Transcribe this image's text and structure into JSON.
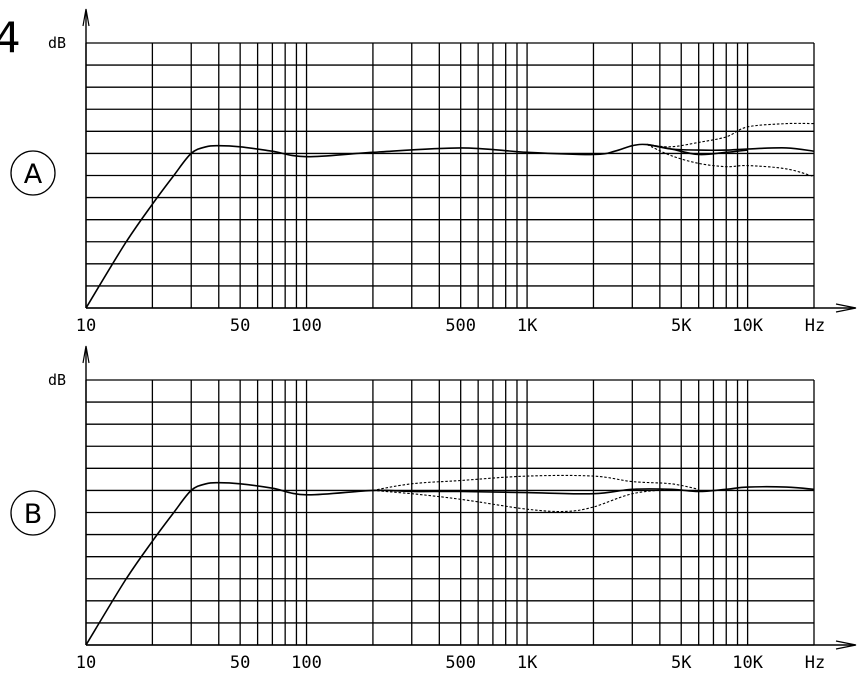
{
  "figure_number": "4",
  "chart_data": [
    {
      "type": "line",
      "panel_label": "A",
      "ylabel": "dB",
      "xunit": "Hz",
      "xscale": "log",
      "xlim": [
        10,
        20000
      ],
      "x_tick_labels": [
        {
          "x": 10,
          "label": "10"
        },
        {
          "x": 50,
          "label": "50"
        },
        {
          "x": 100,
          "label": "100"
        },
        {
          "x": 500,
          "label": "500"
        },
        {
          "x": 1000,
          "label": "1K"
        },
        {
          "x": 5000,
          "label": "5K"
        },
        {
          "x": 10000,
          "label": "10K"
        }
      ],
      "ylim": [
        0,
        12
      ],
      "grid": true,
      "series": [
        {
          "style": "solid",
          "points": [
            [
              10,
              0
            ],
            [
              15,
              2.9
            ],
            [
              20,
              4.7
            ],
            [
              25,
              6.0
            ],
            [
              30,
              7.0
            ],
            [
              35,
              7.3
            ],
            [
              40,
              7.35
            ],
            [
              50,
              7.3
            ],
            [
              70,
              7.1
            ],
            [
              100,
              6.85
            ],
            [
              200,
              7.05
            ],
            [
              500,
              7.25
            ],
            [
              1000,
              7.05
            ],
            [
              2000,
              6.95
            ],
            [
              2500,
              7.1
            ],
            [
              3000,
              7.35
            ],
            [
              3500,
              7.4
            ],
            [
              4500,
              7.2
            ],
            [
              6000,
              7.15
            ],
            [
              8000,
              7.15
            ],
            [
              10000,
              7.2
            ],
            [
              15000,
              7.25
            ],
            [
              20000,
              7.1
            ]
          ]
        },
        {
          "style": "dashed",
          "points": [
            [
              3500,
              7.4
            ],
            [
              4500,
              7.3
            ],
            [
              6000,
              7.5
            ],
            [
              8000,
              7.75
            ],
            [
              10000,
              8.2
            ],
            [
              15000,
              8.35
            ],
            [
              20000,
              8.35
            ]
          ]
        },
        {
          "style": "solid",
          "points": [
            [
              3500,
              7.4
            ],
            [
              4500,
              7.2
            ],
            [
              6000,
              6.95
            ],
            [
              8000,
              7.05
            ],
            [
              10000,
              7.15
            ]
          ]
        },
        {
          "style": "dashed",
          "points": [
            [
              3500,
              7.4
            ],
            [
              4500,
              6.9
            ],
            [
              6000,
              6.55
            ],
            [
              8000,
              6.4
            ],
            [
              10000,
              6.45
            ],
            [
              15000,
              6.3
            ],
            [
              20000,
              5.95
            ]
          ]
        }
      ]
    },
    {
      "type": "line",
      "panel_label": "B",
      "ylabel": "dB",
      "xunit": "Hz",
      "xscale": "log",
      "xlim": [
        10,
        20000
      ],
      "x_tick_labels": [
        {
          "x": 10,
          "label": "10"
        },
        {
          "x": 50,
          "label": "50"
        },
        {
          "x": 100,
          "label": "100"
        },
        {
          "x": 500,
          "label": "500"
        },
        {
          "x": 1000,
          "label": "1K"
        },
        {
          "x": 5000,
          "label": "5K"
        },
        {
          "x": 10000,
          "label": "10K"
        }
      ],
      "ylim": [
        0,
        12
      ],
      "grid": true,
      "series": [
        {
          "style": "solid",
          "points": [
            [
              10,
              0
            ],
            [
              15,
              2.9
            ],
            [
              20,
              4.7
            ],
            [
              25,
              6.0
            ],
            [
              30,
              7.0
            ],
            [
              35,
              7.3
            ],
            [
              40,
              7.35
            ],
            [
              50,
              7.3
            ],
            [
              70,
              7.1
            ],
            [
              100,
              6.8
            ],
            [
              200,
              7.0
            ],
            [
              300,
              6.95
            ],
            [
              500,
              6.95
            ],
            [
              1000,
              6.9
            ],
            [
              2000,
              6.85
            ],
            [
              3000,
              7.05
            ],
            [
              4500,
              7.05
            ],
            [
              6000,
              6.95
            ],
            [
              8000,
              7.05
            ],
            [
              10000,
              7.15
            ],
            [
              15000,
              7.15
            ],
            [
              20000,
              7.05
            ]
          ]
        },
        {
          "style": "dashed",
          "points": [
            [
              200,
              7.0
            ],
            [
              300,
              7.3
            ],
            [
              500,
              7.45
            ],
            [
              1000,
              7.65
            ],
            [
              2000,
              7.65
            ],
            [
              3000,
              7.4
            ],
            [
              4500,
              7.3
            ],
            [
              6000,
              7.05
            ]
          ]
        },
        {
          "style": "dashed",
          "points": [
            [
              200,
              7.0
            ],
            [
              300,
              6.85
            ],
            [
              500,
              6.6
            ],
            [
              1000,
              6.15
            ],
            [
              1500,
              6.05
            ],
            [
              2000,
              6.25
            ],
            [
              3000,
              6.85
            ],
            [
              4500,
              7.05
            ]
          ]
        }
      ]
    }
  ]
}
